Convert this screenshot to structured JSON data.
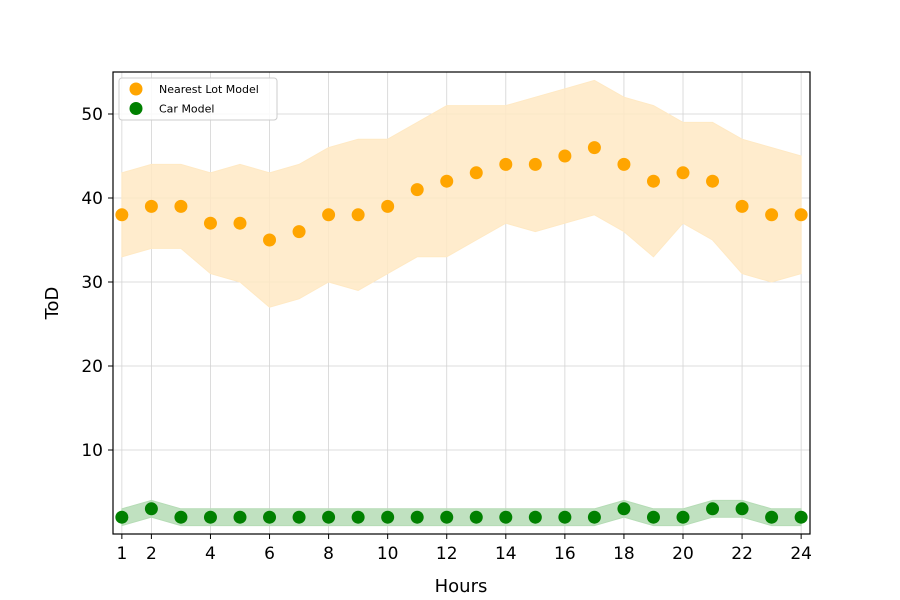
{
  "chart_data": {
    "type": "scatter",
    "title": "",
    "xlabel": "Hours",
    "ylabel": "ToD",
    "x": [
      1,
      2,
      3,
      4,
      5,
      6,
      7,
      8,
      9,
      10,
      11,
      12,
      13,
      14,
      15,
      16,
      17,
      18,
      19,
      20,
      21,
      22,
      23,
      24
    ],
    "xticks": [
      1,
      2,
      4,
      6,
      8,
      10,
      12,
      14,
      16,
      18,
      20,
      22,
      24
    ],
    "yticks": [
      10,
      20,
      30,
      40,
      50
    ],
    "xlim": [
      0.7,
      24.3
    ],
    "ylim": [
      0,
      55
    ],
    "grid": true,
    "legend_position": "top-left",
    "series": [
      {
        "name": "Nearest Lot Model",
        "color": "#ffa500",
        "band_color": "#ffe9c4",
        "values": [
          38,
          39,
          39,
          37,
          37,
          35,
          36,
          38,
          38,
          39,
          41,
          42,
          43,
          44,
          44,
          45,
          46,
          44,
          42,
          43,
          42,
          39,
          38,
          38
        ],
        "band_lower": [
          33,
          34,
          34,
          31,
          30,
          27,
          28,
          30,
          29,
          31,
          33,
          33,
          35,
          37,
          36,
          37,
          38,
          36,
          33,
          37,
          35,
          31,
          30,
          31
        ],
        "band_upper": [
          43,
          44,
          44,
          43,
          44,
          43,
          44,
          46,
          47,
          47,
          49,
          51,
          51,
          51,
          52,
          53,
          54,
          52,
          51,
          49,
          49,
          47,
          46,
          45
        ]
      },
      {
        "name": "Car Model",
        "color": "#008000",
        "band_color": "#b5dcb5",
        "values": [
          2,
          3,
          2,
          2,
          2,
          2,
          2,
          2,
          2,
          2,
          2,
          2,
          2,
          2,
          2,
          2,
          2,
          3,
          2,
          2,
          3,
          3,
          2,
          2
        ],
        "band_lower": [
          1,
          2,
          1,
          1,
          1,
          1,
          1,
          1,
          1,
          1,
          1,
          1,
          1,
          1,
          1,
          1,
          1,
          2,
          1,
          1,
          2,
          2,
          1,
          1
        ],
        "band_upper": [
          3,
          4,
          3,
          3,
          3,
          3,
          3,
          3,
          3,
          3,
          3,
          3,
          3,
          3,
          3,
          3,
          3,
          4,
          3,
          3,
          4,
          4,
          3,
          3
        ]
      }
    ]
  }
}
